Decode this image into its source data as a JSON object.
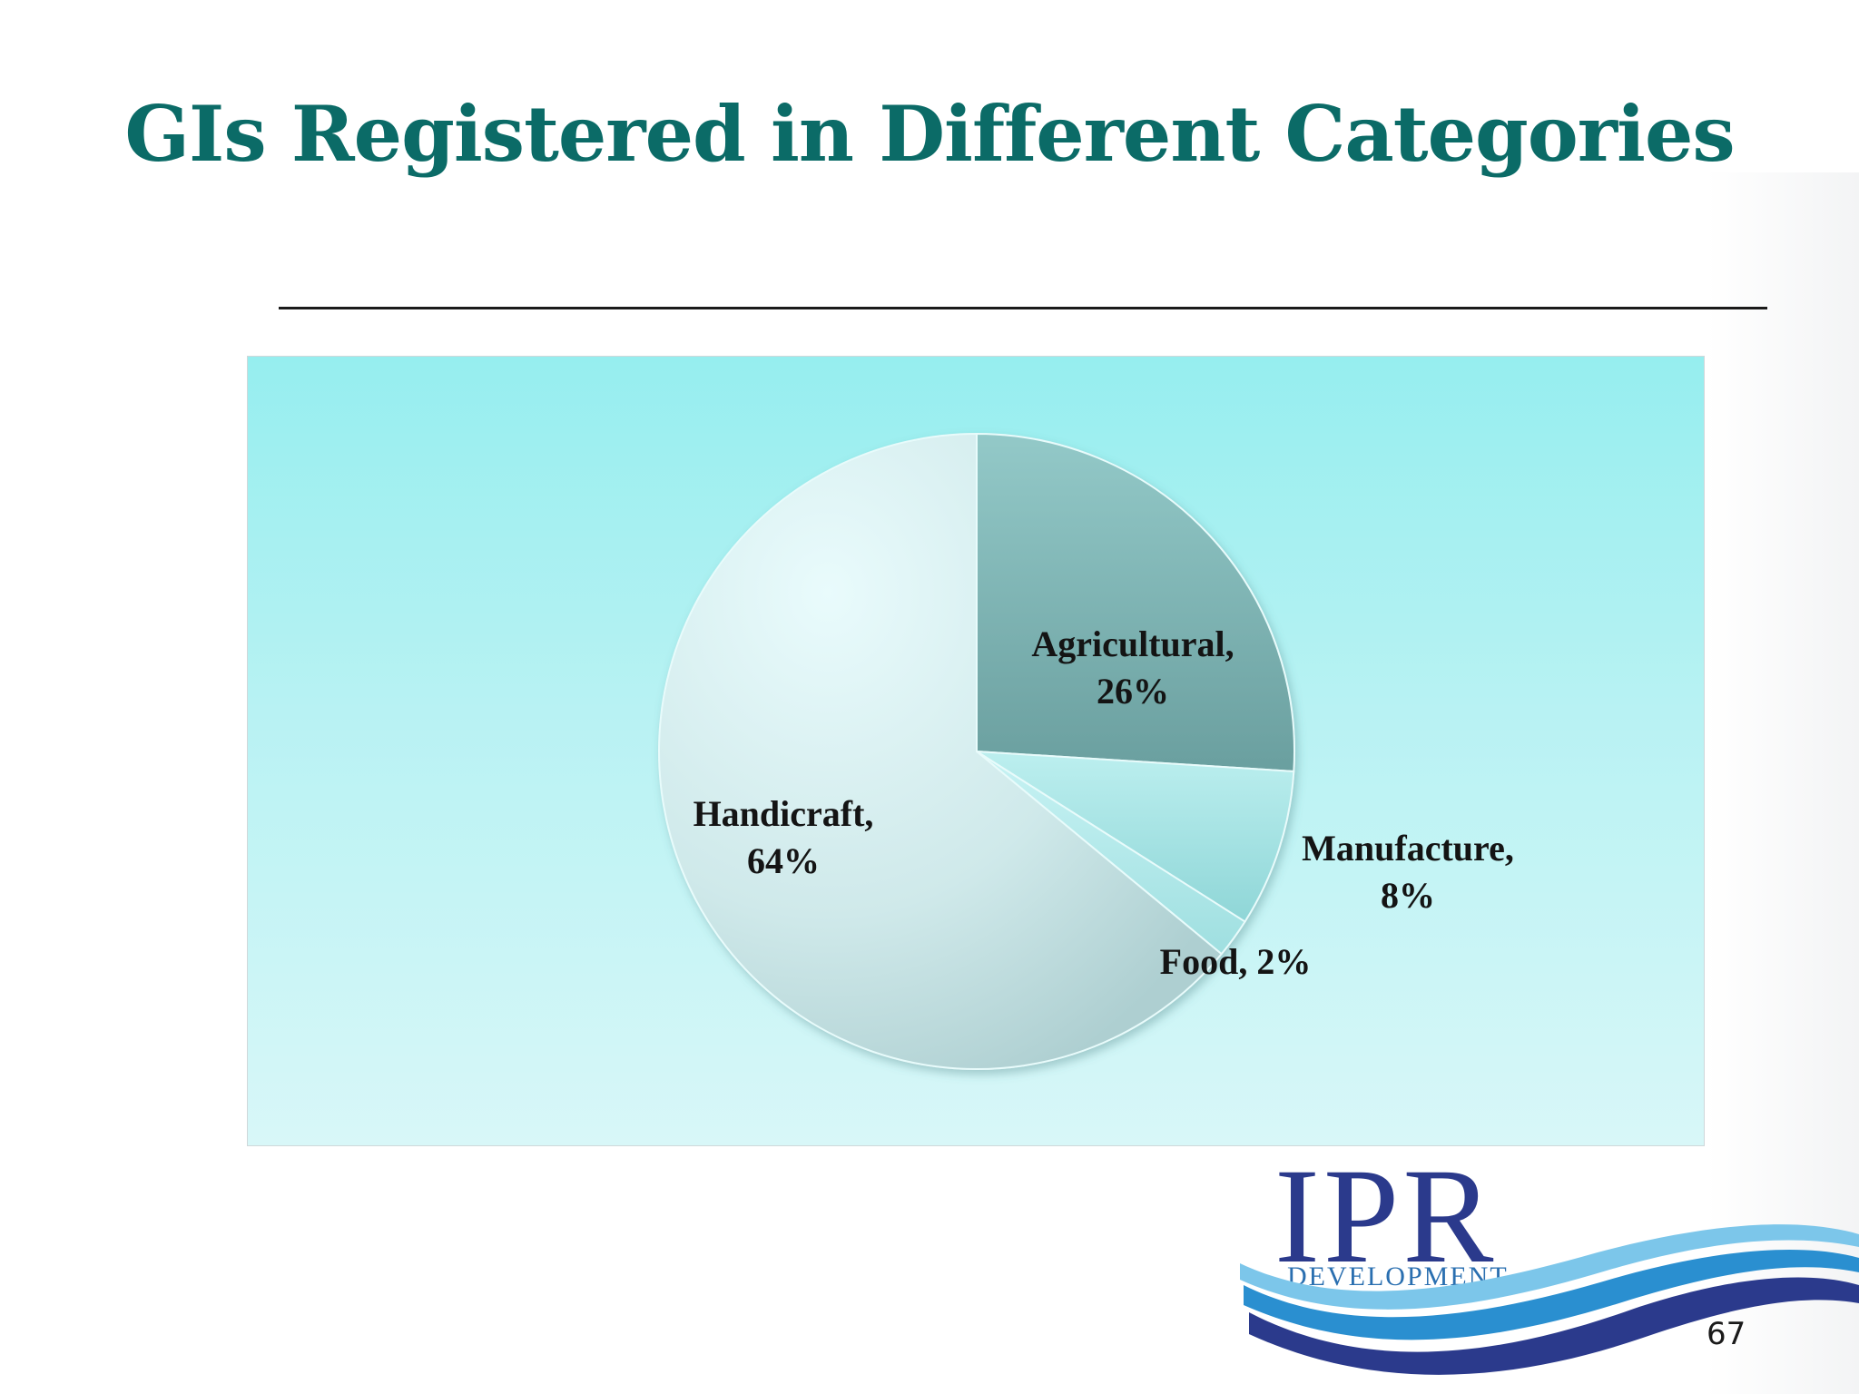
{
  "slide": {
    "title": "GIs Registered in Different Categories",
    "page_number": "67"
  },
  "logo": {
    "name": "IPR",
    "tagline": "DEVELOPMENT",
    "primary_color": "#2b3a8c",
    "wave_color": "#2a8fd0"
  },
  "chart_data": {
    "type": "pie",
    "title": "",
    "series": [
      {
        "name": "Agricultural",
        "value": 26,
        "label_line1": "Agricultural,",
        "label_line2": "26%",
        "color": "#7fb4b4"
      },
      {
        "name": "Manufacture",
        "value": 8,
        "label_line1": "Manufacture,",
        "label_line2": "8%",
        "color": "#a6e3e5"
      },
      {
        "name": "Food",
        "value": 2,
        "label_line1": "Food, 2%",
        "label_line2": "",
        "color": "#bff0f1"
      },
      {
        "name": "Handicraft",
        "value": 64,
        "label_line1": "Handicraft,",
        "label_line2": "64%",
        "color": "#cfecee"
      }
    ],
    "legend": "none",
    "background_color": "#aff0f1"
  }
}
